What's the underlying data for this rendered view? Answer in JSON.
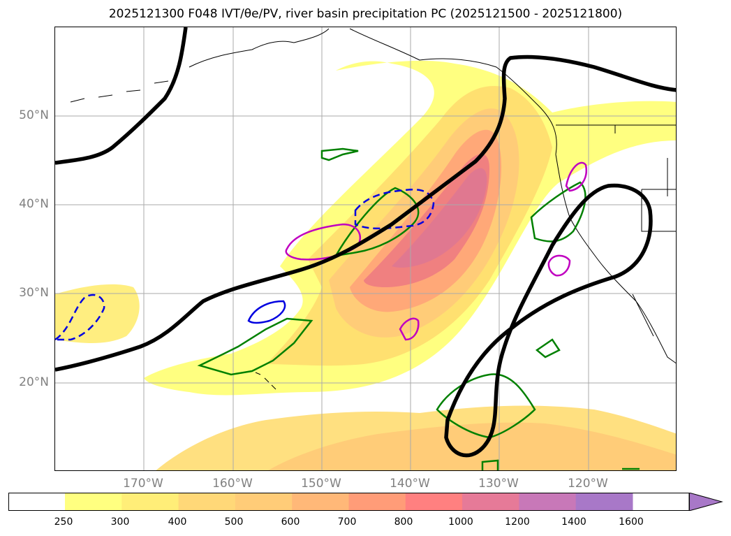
{
  "title": "2025121300 F048 IVT/θe/PV, river basin precipitation PC (2025121500 - 2025121800)",
  "latitude_labels": [
    "50°N",
    "40°N",
    "30°N",
    "20°N"
  ],
  "longitude_labels": [
    "170°W",
    "160°W",
    "150°W",
    "140°W",
    "130°W",
    "120°W"
  ],
  "colorbar": {
    "ticks": [
      "250",
      "300",
      "400",
      "500",
      "600",
      "700",
      "800",
      "1000",
      "1200",
      "1400",
      "1600"
    ],
    "colors": [
      "#ffffff",
      "#ffff80",
      "#ffee78",
      "#ffd878",
      "#ffcc78",
      "#ffb878",
      "#ff9c78",
      "#ff8080",
      "#e67a98",
      "#c878b8",
      "#a878c8"
    ]
  },
  "line_colors": {
    "pv_contour": "#000000",
    "green_contour": "#008000",
    "magenta_contour": "#c000c0",
    "blue_contour": "#0000e0"
  }
}
